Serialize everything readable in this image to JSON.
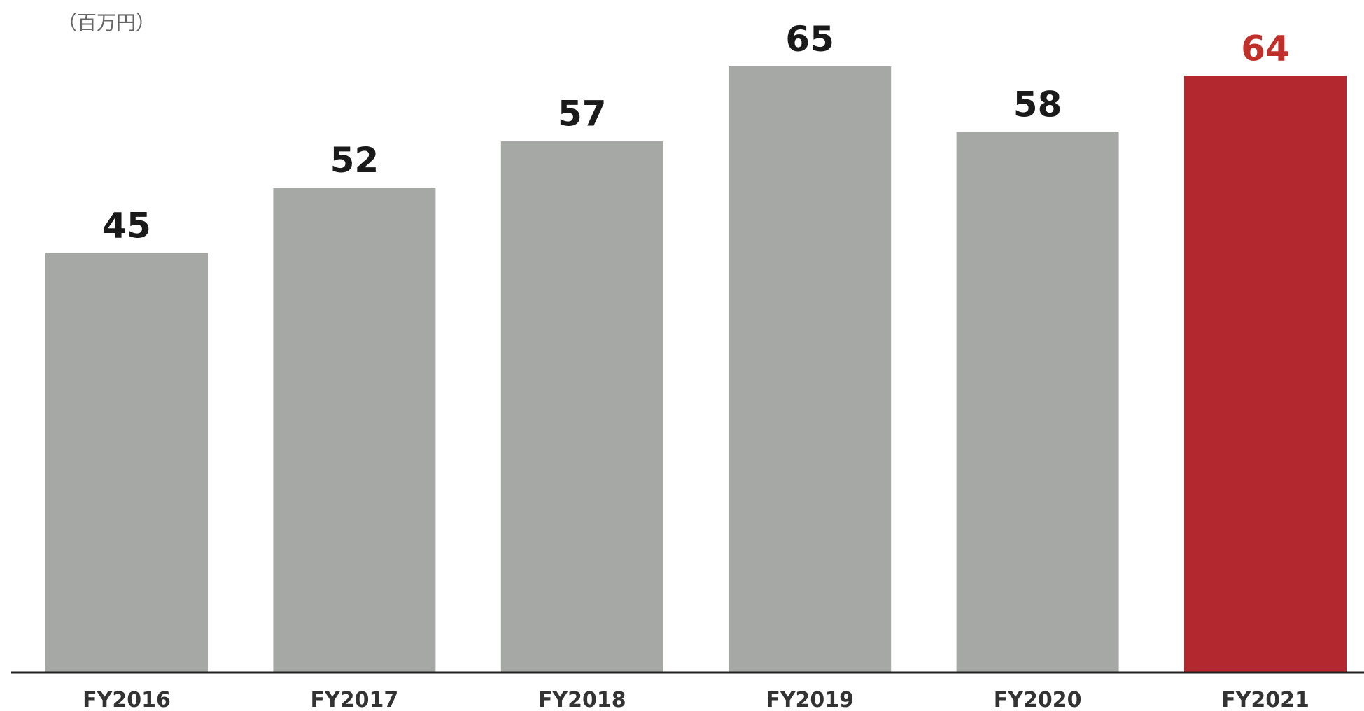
{
  "chart_data": {
    "type": "bar",
    "unit_label": "（百万円）",
    "categories": [
      "FY2016",
      "FY2017",
      "FY2018",
      "FY2019",
      "FY2020",
      "FY2021"
    ],
    "values": [
      45,
      52,
      57,
      65,
      58,
      64
    ],
    "title": "",
    "xlabel": "",
    "ylabel": "",
    "ylim": [
      0,
      65
    ],
    "grid": false,
    "legend": "none",
    "highlight_index": 5
  },
  "colors": {
    "bar_default": "#a5a8a5",
    "bar_highlight": "#b3282e",
    "label_default": "#1a1a1a",
    "label_highlight": "#c0302b",
    "baseline": "#222222"
  }
}
